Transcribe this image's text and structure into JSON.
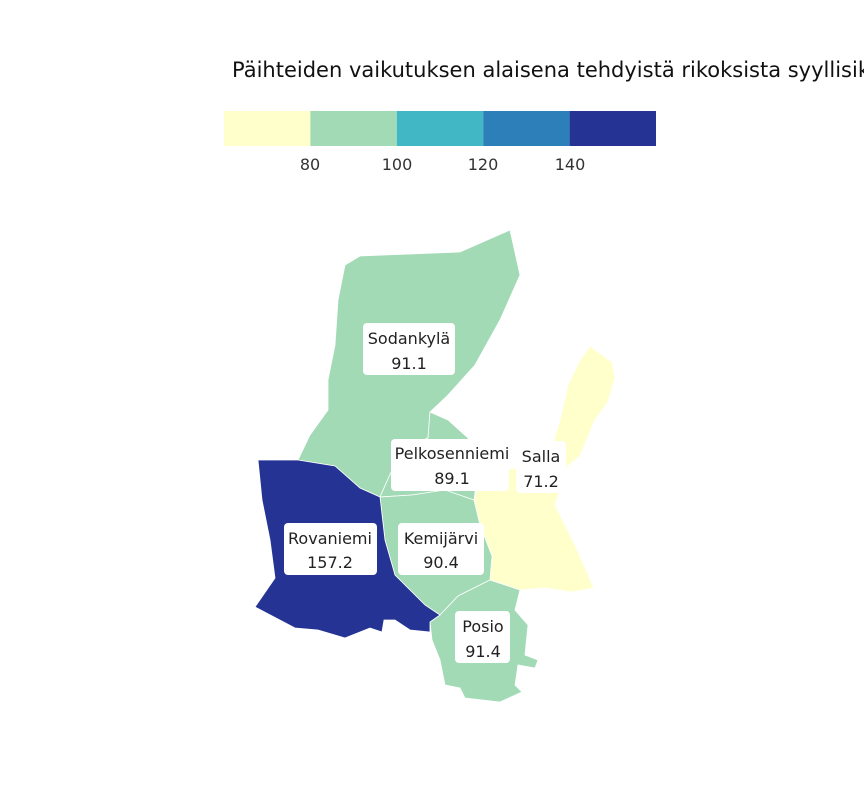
{
  "map": {
    "title": "Päihteiden vaikutuksen alaisena tehdyistä rikoksista syyllisiksi",
    "legend": {
      "colors": [
        "#ffffcc",
        "#a1dab4",
        "#41b6c4",
        "#2c7fb8",
        "#253494"
      ],
      "breaks": [
        80,
        100,
        120,
        140
      ],
      "tick_labels": [
        "80",
        "100",
        "120",
        "140"
      ]
    },
    "regions": [
      {
        "name": "Sodankylä",
        "value": "91.1",
        "color": "#a1dab4"
      },
      {
        "name": "Pelkosenniemi",
        "value": "89.1",
        "color": "#a1dab4"
      },
      {
        "name": "Salla",
        "value": "71.2",
        "color": "#ffffcc"
      },
      {
        "name": "Rovaniemi",
        "value": "157.2",
        "color": "#253494"
      },
      {
        "name": "Kemijärvi",
        "value": "90.4",
        "color": "#a1dab4"
      },
      {
        "name": "Posio",
        "value": "91.4",
        "color": "#a1dab4"
      }
    ]
  }
}
